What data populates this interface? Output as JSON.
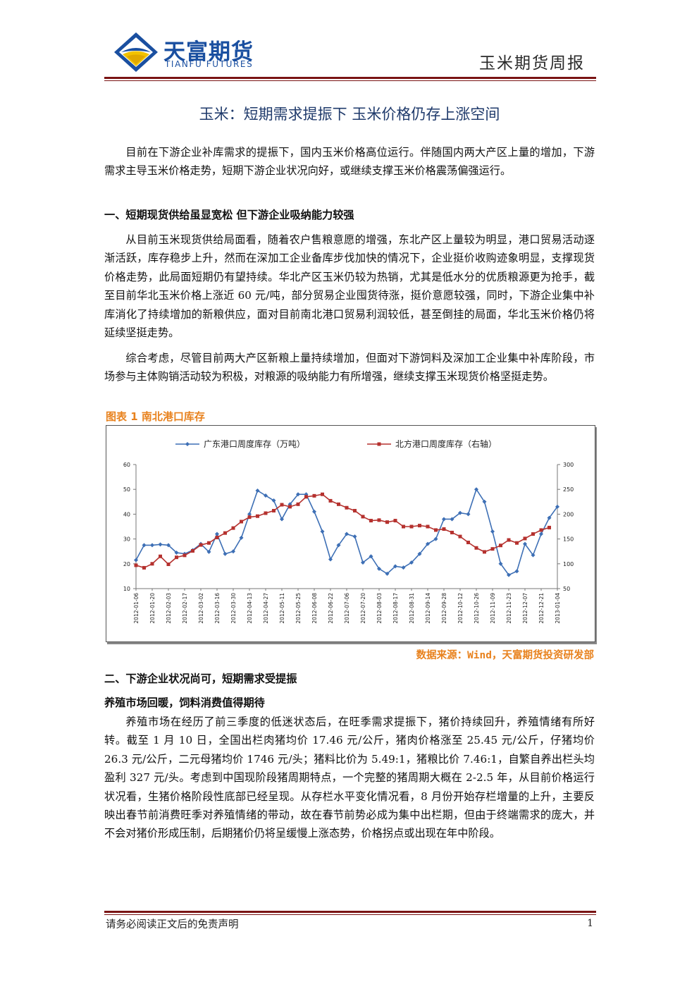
{
  "header": {
    "logo_cn": "天富期货",
    "logo_en": "TIANFU FUTURES",
    "report_name": "玉米期货周报"
  },
  "title": "玉米：短期需求提振下 玉米价格仍存上涨空间",
  "intro": "目前在下游企业补库需求的提振下，国内玉米价格高位运行。伴随国内两大产区上量的增加，下游需求主导玉米价格走势，短期下游企业状况向好，或继续支撑玉米价格震荡偏强运行。",
  "section1": {
    "heading": "一、短期现货供给虽显宽松 但下游企业吸纳能力较强",
    "p1": "从目前玉米现货供给局面看，随着农户售粮意愿的增强，东北产区上量较为明显，港口贸易活动逐渐活跃，库存稳步上升，然而在深加工企业备库步伐加快的情况下，企业挺价收购迹象明显，支撑现货价格走势，此局面短期仍有望持续。华北产区玉米仍较为热销，尤其是低水分的优质粮源更为抢手，截至目前华北玉米价格上涨近 60 元/吨，部分贸易企业囤货待涨，挺价意愿较强，同时，下游企业集中补库消化了持续增加的新粮供应，面对目前南北港口贸易利润较低，甚至倒挂的局面，华北玉米价格仍将延续坚挺走势。",
    "p2": "综合考虑，尽管目前两大产区新粮上量持续增加，但面对下游饲料及深加工企业集中补库阶段，市场参与主体购销活动较为积极，对粮源的吸纳能力有所增强，继续支撑玉米现货价格坚挺走势。"
  },
  "figure": {
    "caption": "图表 1 南北港口库存",
    "source": "数据来源：Wind，天富期货投资研发部"
  },
  "chart_data": {
    "type": "line",
    "title": "",
    "x": [
      "2012-01-06",
      "2012-01-13",
      "2012-01-20",
      "2012-01-27",
      "2012-02-03",
      "2012-02-10",
      "2012-02-17",
      "2012-02-24",
      "2012-03-02",
      "2012-03-09",
      "2012-03-16",
      "2012-03-23",
      "2012-03-30",
      "2012-04-06",
      "2012-04-13",
      "2012-04-20",
      "2012-04-27",
      "2012-05-04",
      "2012-05-11",
      "2012-05-18",
      "2012-05-25",
      "2012-06-01",
      "2012-06-08",
      "2012-06-15",
      "2012-06-22",
      "2012-06-29",
      "2012-07-06",
      "2012-07-13",
      "2012-07-20",
      "2012-07-27",
      "2012-08-03",
      "2012-08-10",
      "2012-08-17",
      "2012-08-24",
      "2012-08-31",
      "2012-09-07",
      "2012-09-14",
      "2012-09-21",
      "2012-09-28",
      "2012-10-05",
      "2012-10-12",
      "2012-10-19",
      "2012-10-26",
      "2012-11-02",
      "2012-11-09",
      "2012-11-16",
      "2012-11-23",
      "2012-11-30",
      "2012-12-07",
      "2012-12-14",
      "2012-12-21",
      "2012-12-28",
      "2013-01-04"
    ],
    "x_tick_labels": [
      "2012-01-06",
      "2012-01-20",
      "2012-02-03",
      "2012-02-17",
      "2012-03-02",
      "2012-03-16",
      "2012-03-30",
      "2012-04-13",
      "2012-04-27",
      "2012-05-11",
      "2012-05-25",
      "2012-06-08",
      "2012-06-22",
      "2012-07-06",
      "2012-07-20",
      "2012-08-03",
      "2012-08-17",
      "2012-08-31",
      "2012-09-14",
      "2012-09-28",
      "2012-10-12",
      "2012-10-26",
      "2012-11-09",
      "2012-11-23",
      "2012-12-07",
      "2012-12-21",
      "2013-01-04"
    ],
    "series": [
      {
        "name": "广东港口周度库存（万吨）",
        "axis": "left",
        "color": "#3d6fb5",
        "values": [
          21.5,
          27.5,
          27.5,
          27.8,
          27.5,
          24.5,
          24.0,
          25.5,
          28.0,
          24.8,
          32.0,
          24.0,
          25.0,
          30.5,
          40.0,
          49.5,
          47.5,
          45.5,
          38.0,
          44.0,
          48.0,
          48.0,
          41.0,
          33.0,
          21.8,
          27.5,
          32.0,
          31.0,
          20.5,
          23.0,
          18.0,
          16.0,
          19.0,
          18.5,
          20.5,
          24.0,
          28.0,
          30.0,
          38.0,
          38.0,
          40.5,
          40.0,
          50.0,
          45.0,
          33.0,
          20.0,
          15.5,
          17.0,
          28.0,
          23.5,
          32.0,
          38.5,
          43.0
        ]
      },
      {
        "name": "北方港口周度库存（右轴）",
        "axis": "right",
        "color": "#b5312e",
        "values": [
          97,
          92,
          100,
          115,
          99,
          113,
          117,
          126,
          138,
          142,
          153,
          162,
          172,
          185,
          194,
          196,
          202,
          207,
          219,
          215,
          220,
          235,
          237,
          240,
          227,
          220,
          213,
          207,
          195,
          187,
          188,
          184,
          187,
          175,
          175,
          177,
          175,
          168,
          170,
          163,
          155,
          143,
          132,
          124,
          130,
          137,
          148,
          142,
          151,
          160,
          168,
          173,
          null
        ]
      }
    ],
    "y_left": {
      "min": 10,
      "max": 60,
      "ticks": [
        10,
        20,
        30,
        40,
        50,
        60
      ]
    },
    "y_right": {
      "min": 50,
      "max": 300,
      "ticks": [
        50,
        100,
        150,
        200,
        250,
        300
      ]
    },
    "legend_position": "top",
    "grid": false
  },
  "section2": {
    "heading": "二、下游企业状况尚可，短期需求受提振",
    "sub1": "养殖市场回暖，饲料消费值得期待",
    "p1": "养殖市场在经历了前三季度的低迷状态后，在旺季需求提振下，猪价持续回升，养殖情绪有所好转。截至 1 月 10 日，全国出栏肉猪均价 17.46 元/公斤，猪肉价格涨至 25.45 元/公斤，仔猪均价 26.3 元/公斤，二元母猪均价 1746 元/头；猪料比价为 5.49:1，猪粮比价 7.46:1，自繁自养出栏头均盈利 327 元/头。考虑到中国现阶段猪周期特点，一个完整的猪周期大概在 2-2.5 年，从目前价格运行状况看，生猪价格阶段性底部已经呈现。从存栏水平变化情况看，8 月份开始存栏增量的上升，主要反映出春节前消费旺季对养殖情绪的带动，故在春节前势必成为集中出栏期，但由于终端需求的庞大，并不会对猪价形成压制，后期猪价仍将呈缓慢上涨态势，价格拐点或出现在年中阶段。"
  },
  "footer": {
    "disclaimer": "请务必阅读正文后的免责声明",
    "page": "1"
  }
}
